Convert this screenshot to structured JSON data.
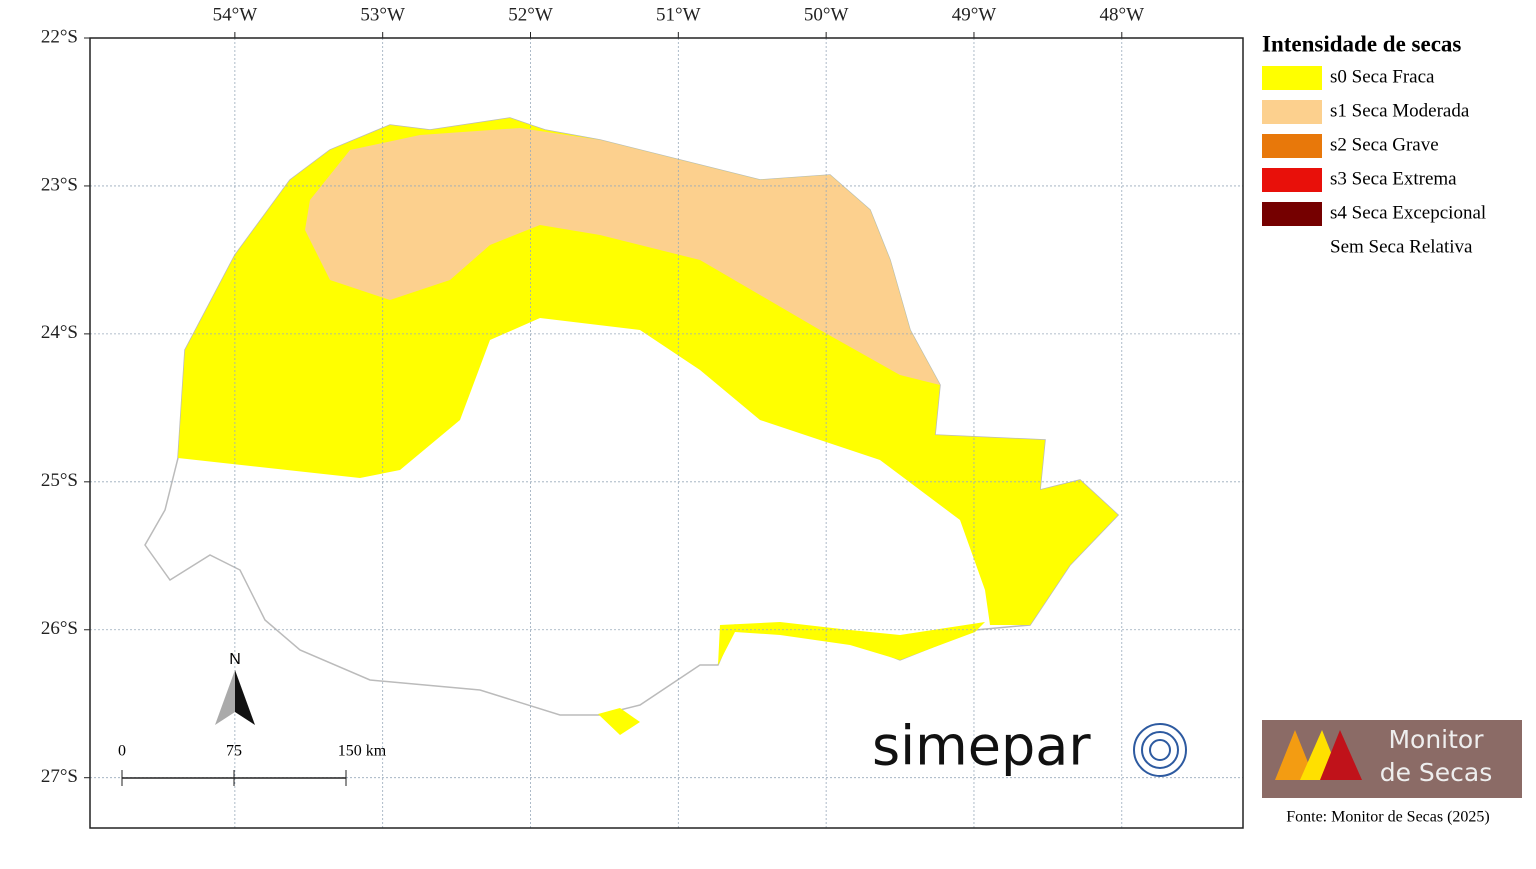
{
  "map": {
    "xlim": [
      -54.98,
      -47.18
    ],
    "ylim": [
      -27.34,
      -22
    ],
    "xticks": [
      {
        "value": -54,
        "label": "54°W"
      },
      {
        "value": -53,
        "label": "53°W"
      },
      {
        "value": -52,
        "label": "52°W"
      },
      {
        "value": -51,
        "label": "51°W"
      },
      {
        "value": -50,
        "label": "50°W"
      },
      {
        "value": -49,
        "label": "49°W"
      },
      {
        "value": -48,
        "label": "48°W"
      }
    ],
    "yticks": [
      {
        "value": -22,
        "label": "22°S"
      },
      {
        "value": -23,
        "label": "23°S"
      },
      {
        "value": -24,
        "label": "24°S"
      },
      {
        "value": -25,
        "label": "25°S"
      },
      {
        "value": -26,
        "label": "26°S"
      },
      {
        "value": -27,
        "label": "27°S"
      }
    ],
    "north": "N",
    "scale_bar": [
      "0",
      "75",
      "150 km"
    ],
    "brand": "simepar"
  },
  "legend": {
    "title": "Intensidade de secas",
    "items": [
      {
        "label": "s0 Seca Fraca",
        "color": "#ffff00"
      },
      {
        "label": "s1 Seca Moderada",
        "color": "#fcd08e"
      },
      {
        "label": "s2 Seca Grave",
        "color": "#e8780a"
      },
      {
        "label": "s3 Seca Extrema",
        "color": "#e8100a"
      },
      {
        "label": "s4 Seca Excepcional",
        "color": "#750000"
      },
      {
        "label": "Sem Seca Relativa",
        "color": null
      }
    ]
  },
  "logo": {
    "line1": "Monitor",
    "line2": "de Secas"
  },
  "source": "Fonte: Monitor de Secas (2025)"
}
